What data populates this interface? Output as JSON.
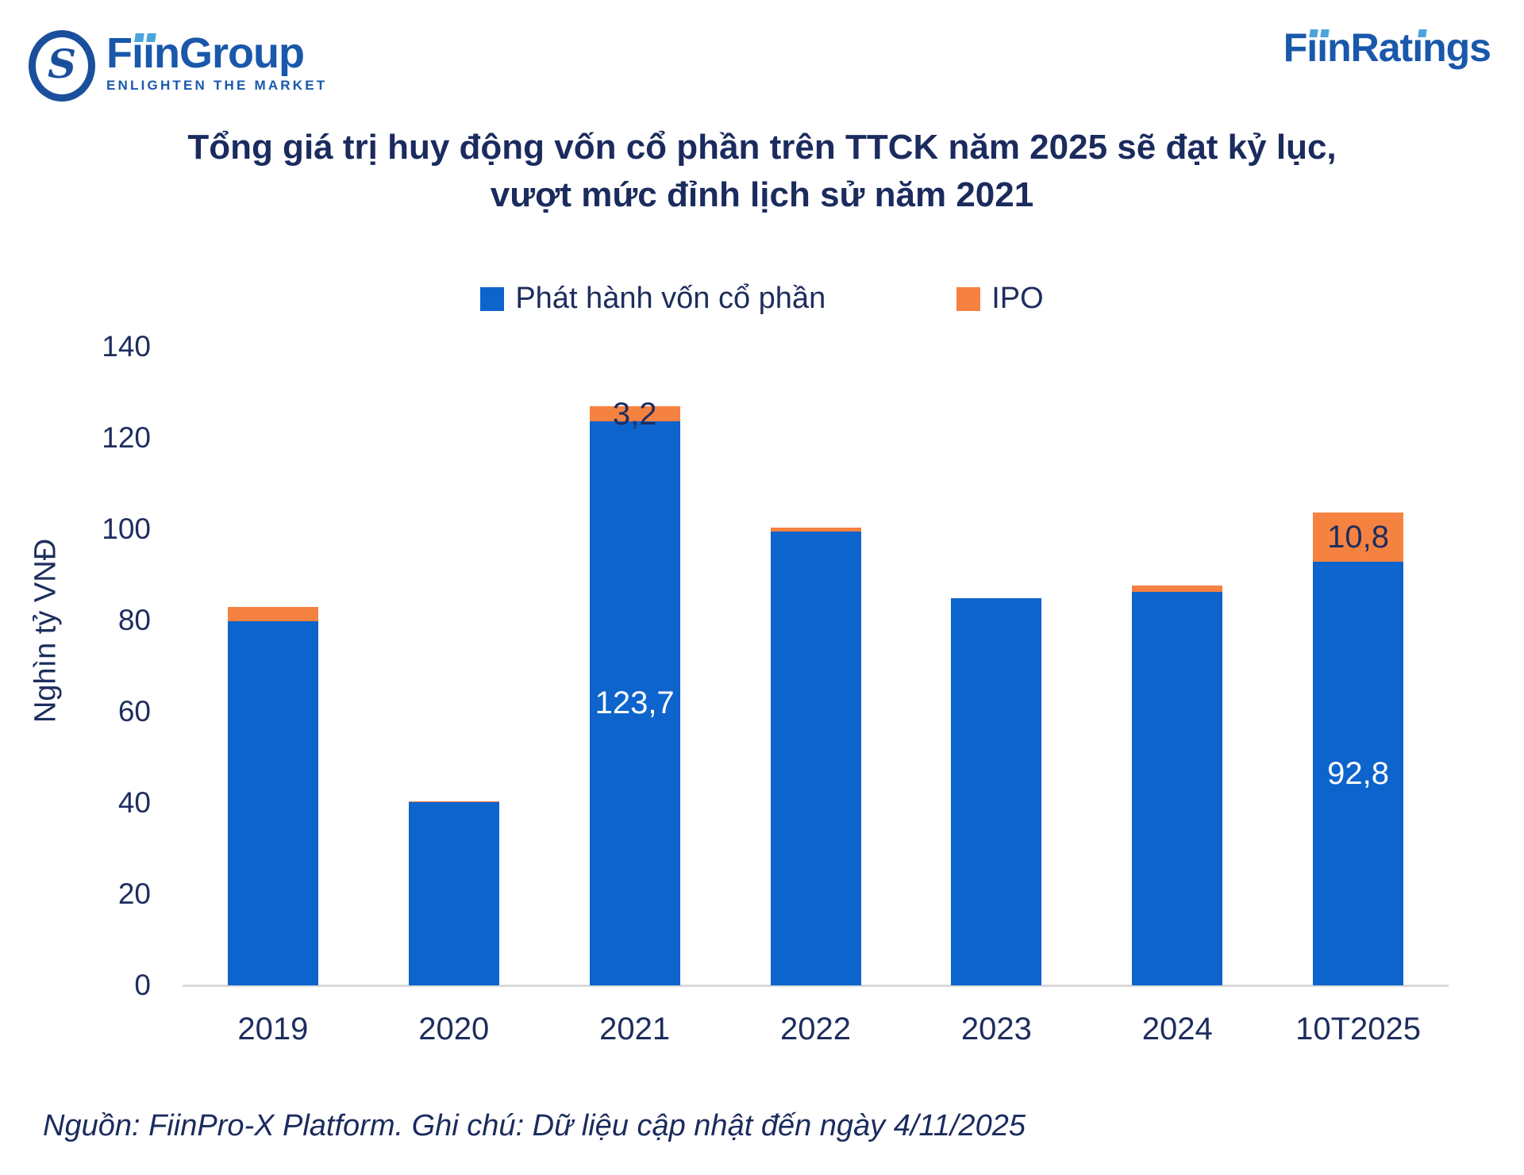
{
  "header": {
    "fiingroup": {
      "name": "FiinGroup",
      "wordmark": {
        "pre": "F",
        "dotless": "ıı",
        "post": "nGroup"
      },
      "emblem_glyph": "S",
      "tagline": "ENLIGHTEN THE MARKET"
    },
    "fiinratings": {
      "name": "FiinRatings",
      "wordmark": {
        "pre": "F",
        "dotless": "ıı",
        "mid": "nRat",
        "dotless2": "ı",
        "post": "ngs"
      }
    }
  },
  "title": {
    "line1": "Tổng giá trị huy động vốn cổ phần trên TTCK năm 2025 sẽ đạt kỷ lục,",
    "line2": "vượt mức đỉnh lịch sử năm 2021"
  },
  "chart_data": {
    "type": "bar",
    "stacked": true,
    "title": "Tổng giá trị huy động vốn cổ phần trên TTCK năm 2025 sẽ đạt kỷ lục, vượt mức đỉnh lịch sử năm 2021",
    "categories": [
      "2019",
      "2020",
      "2021",
      "2022",
      "2023",
      "2024",
      "10T2025"
    ],
    "series": [
      {
        "name": "Phát hành vốn cổ phần",
        "color": "#0d64cc",
        "values": [
          79.8,
          40.1,
          123.7,
          99.4,
          84.8,
          86.2,
          92.8
        ]
      },
      {
        "name": "IPO",
        "color": "#f58240",
        "values": [
          3.1,
          0.3,
          3.2,
          1.0,
          0,
          1.4,
          10.8
        ]
      }
    ],
    "bar_labels": [
      {
        "category": "2021",
        "series": 1,
        "text": "3,2",
        "variant": "dark"
      },
      {
        "category": "2021",
        "series": 0,
        "text": "123,7",
        "variant": "light"
      },
      {
        "category": "10T2025",
        "series": 1,
        "text": "10,8",
        "variant": "dark"
      },
      {
        "category": "10T2025",
        "series": 0,
        "text": "92,8",
        "variant": "light"
      }
    ],
    "xlabel": "",
    "ylabel": "Nghìn tỷ VNĐ",
    "ylim": [
      0,
      140
    ],
    "yticks": [
      0,
      20,
      40,
      60,
      80,
      100,
      120,
      140
    ],
    "grid": false,
    "legend_position": "top-center",
    "axis_line_color": "#d9d9d9",
    "label_color": "#1d2d5e"
  },
  "footer": {
    "source": "Nguồn: FiinPro-X Platform. Ghi chú: Dữ liệu cập nhật đến ngày 4/11/2025"
  }
}
